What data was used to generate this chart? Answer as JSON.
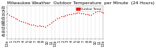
{
  "title": "Milwaukee Weather  Outdoor Temperature  per Minute  (24 Hours)",
  "line_color": "#ff0000",
  "bg_color": "#ffffff",
  "plot_bg_color": "#ffffff",
  "grid_color": "#888888",
  "legend_color": "#ff0000",
  "legend_label": "Outdoor Temp",
  "xlim": [
    0,
    1440
  ],
  "ylim": [
    35,
    83
  ],
  "yticks": [
    40,
    45,
    50,
    55,
    60,
    65,
    70,
    75,
    80
  ],
  "xtick_positions": [
    0,
    60,
    120,
    180,
    240,
    300,
    360,
    420,
    480,
    540,
    600,
    660,
    720,
    780,
    840,
    900,
    960,
    1020,
    1080,
    1140,
    1200,
    1260,
    1320,
    1380,
    1440
  ],
  "xtick_labels": [
    "12a",
    "1",
    "2",
    "3",
    "4",
    "5",
    "6",
    "7",
    "8",
    "9",
    "10",
    "11",
    "12p",
    "1",
    "2",
    "3",
    "4",
    "5",
    "6",
    "7",
    "8",
    "9",
    "10",
    "11",
    "12a"
  ],
  "data_x": [
    0,
    30,
    60,
    90,
    120,
    150,
    180,
    210,
    240,
    270,
    300,
    330,
    360,
    390,
    420,
    450,
    480,
    510,
    540,
    570,
    600,
    630,
    660,
    690,
    720,
    750,
    780,
    810,
    840,
    870,
    900,
    930,
    960,
    990,
    1020,
    1050,
    1080,
    1110,
    1140,
    1170,
    1200,
    1230,
    1260,
    1290,
    1320,
    1350,
    1380,
    1410,
    1440
  ],
  "data_y": [
    72,
    70,
    68,
    66,
    64,
    63,
    61,
    60,
    59,
    58,
    57,
    56,
    55,
    55,
    54,
    53,
    54,
    53,
    53,
    52,
    54,
    56,
    58,
    60,
    62,
    64,
    65,
    67,
    68,
    69,
    70,
    71,
    71,
    72,
    72,
    73,
    73,
    72,
    72,
    71,
    71,
    70,
    70,
    72,
    74,
    75,
    75,
    74,
    73
  ],
  "marker_size": 1.2,
  "title_fontsize": 4.5,
  "tick_fontsize": 3.5
}
